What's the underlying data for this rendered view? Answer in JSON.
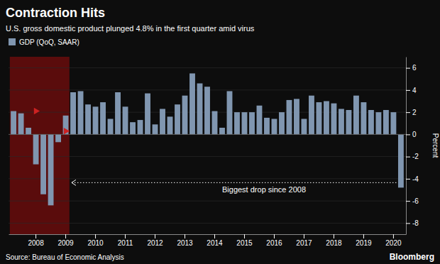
{
  "chart_data": {
    "type": "bar",
    "title": "Contraction Hits",
    "subtitle": "U.S. gross domestic product plunged 4.8% in the first quarter amid virus",
    "source": "Source: Bureau of Economic Analysis",
    "credit": "Bloomberg",
    "ylabel": "Percent",
    "background_color": "#0d0d0d",
    "categories": [
      null,
      null,
      null,
      "2008",
      null,
      null,
      null,
      "2009",
      null,
      null,
      null,
      "2010",
      null,
      null,
      null,
      "2011",
      null,
      null,
      null,
      "2012",
      null,
      null,
      null,
      "2013",
      null,
      null,
      null,
      "2014",
      null,
      null,
      null,
      "2015",
      null,
      null,
      null,
      "2016",
      null,
      null,
      null,
      "2017",
      null,
      null,
      null,
      "2018",
      null,
      null,
      null,
      "2019",
      null,
      null,
      null,
      "2020",
      null
    ],
    "series": [
      {
        "name": "GDP (QoQ, SAAR)",
        "color": "#8096b0",
        "values": [
          2.1,
          1.9,
          0.6,
          -2.7,
          -5.4,
          -6.4,
          -0.7,
          1.7,
          3.8,
          3.9,
          2.7,
          2.5,
          2.9,
          1.4,
          3.8,
          2.5,
          1.1,
          1.3,
          3.7,
          0.9,
          2.3,
          1.6,
          2.7,
          3.5,
          5.5,
          4.6,
          4.3,
          2.1,
          0.6,
          3.9,
          2.0,
          2.0,
          2.0,
          2.6,
          1.5,
          1.4,
          2.0,
          3.1,
          3.2,
          1.4,
          3.5,
          2.9,
          3.0,
          2.8,
          2.3,
          2.2,
          3.5,
          2.9,
          2.2,
          2.0,
          2.2,
          2.0,
          -4.8
        ]
      }
    ],
    "recession": {
      "from": 0,
      "to": 7,
      "color": "#5a0c0c"
    },
    "markers": {
      "color": "#cc2222",
      "x": [
        3,
        7
      ],
      "y": [
        2.1,
        0.3
      ]
    },
    "annotation": {
      "text": "Biggest drop since 2008",
      "y": -4.35,
      "start": 8
    },
    "ylim": [
      -9,
      7
    ],
    "yticks": [
      -8,
      -6,
      -4,
      -2,
      0,
      2,
      4,
      6
    ],
    "grid": true,
    "legend": "upper left"
  }
}
